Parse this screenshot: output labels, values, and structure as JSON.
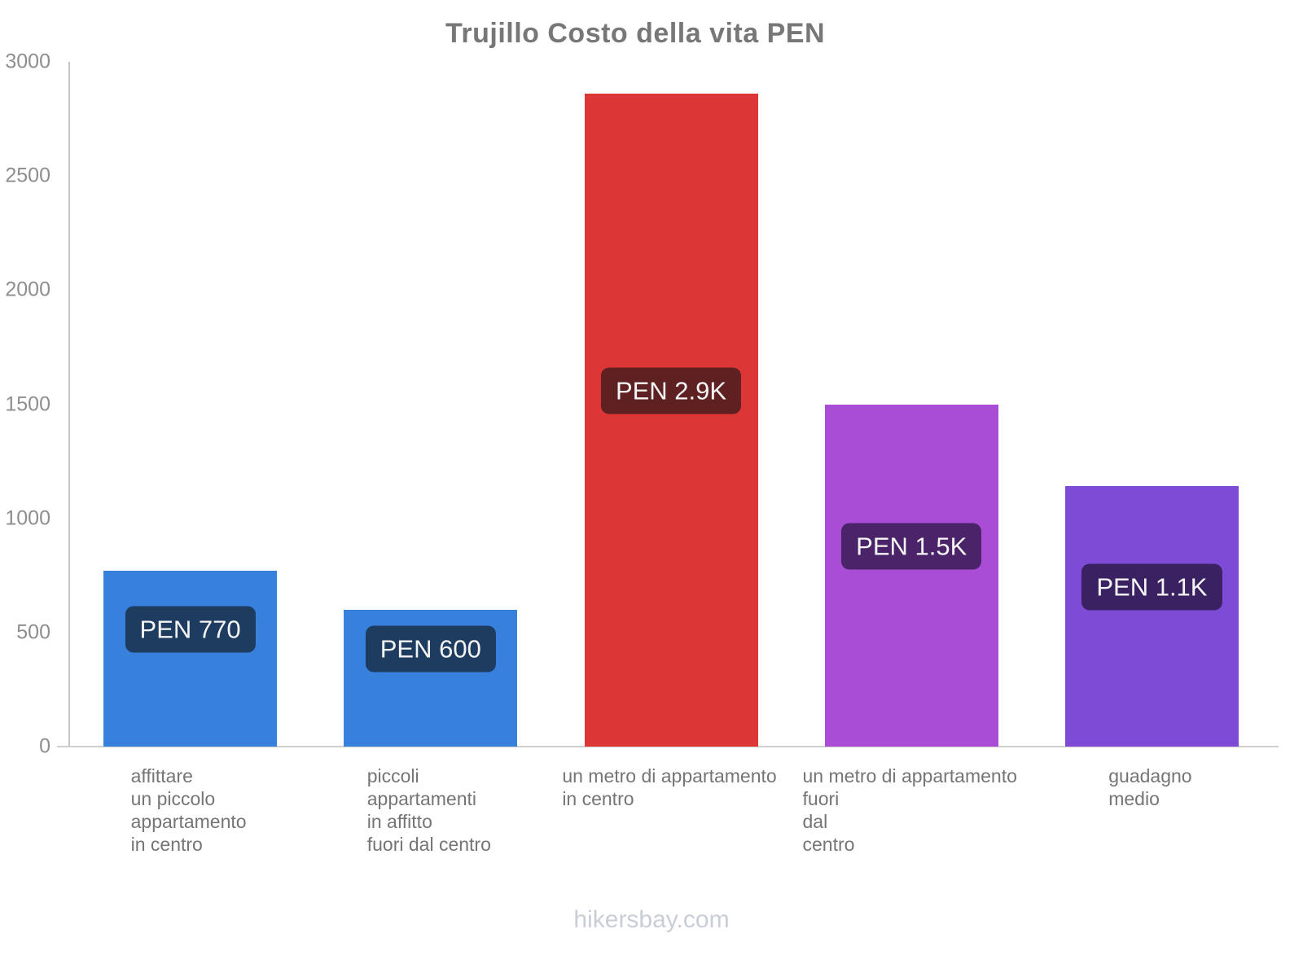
{
  "header": {
    "title": "Trujillo Costo della vita PEN"
  },
  "footer": {
    "site": "hikersbay.com"
  },
  "colors": {
    "title_text": "#777777",
    "axis_line": "#c6c6c6",
    "baseline": "#d0d0d0",
    "ytick_text": "#8e8e8e",
    "category_text": "#757575",
    "badge_text": "#f4f4f4",
    "footer_text": "#c9cdd6"
  },
  "chart_data": {
    "type": "bar",
    "title": "Trujillo Costo della vita PEN",
    "xlabel": "",
    "ylabel": "",
    "ylim": [
      0,
      3000
    ],
    "yticks": [
      0,
      500,
      1000,
      1500,
      2000,
      2500,
      3000
    ],
    "grid": false,
    "legend": false,
    "categories": [
      [
        "affittare",
        "un piccolo",
        "appartamento",
        "in centro"
      ],
      [
        "piccoli",
        "appartamenti",
        "in affitto",
        "fuori dal centro"
      ],
      [
        "un metro di appartamento",
        "in centro"
      ],
      [
        "un metro di appartamento",
        "fuori",
        "dal",
        "centro"
      ],
      [
        "guadagno",
        "medio"
      ]
    ],
    "values": [
      770,
      600,
      2860,
      1500,
      1140
    ],
    "value_labels": [
      "PEN 770",
      "PEN 600",
      "PEN 2.9K",
      "PEN 1.5K",
      "PEN 1.1K"
    ],
    "bar_colors": [
      "#3781dd",
      "#3781dd",
      "#dd3636",
      "#a94cd6",
      "#7d4bd6"
    ],
    "label_bg_colors": [
      "#1d3c5f",
      "#1d3c5f",
      "#5e2020",
      "#4a2368",
      "#3a2162"
    ],
    "currency": "PEN"
  }
}
